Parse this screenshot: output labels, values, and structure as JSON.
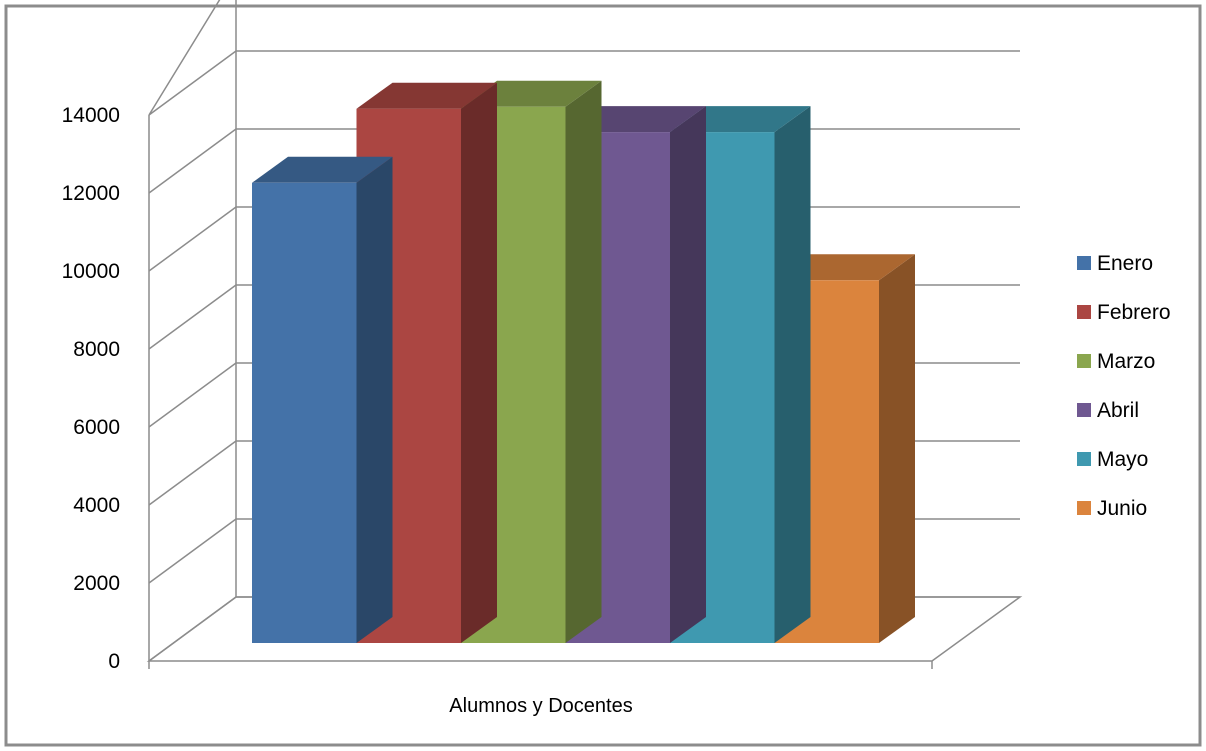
{
  "chart_data": {
    "type": "bar",
    "view": "3d-clustered-column",
    "categories": [
      "Alumnos y Docentes"
    ],
    "series": [
      {
        "name": "Enero",
        "values": [
          11800
        ],
        "color": "#4472a8"
      },
      {
        "name": "Febrero",
        "values": [
          13700
        ],
        "color": "#ab4642"
      },
      {
        "name": "Marzo",
        "values": [
          13750
        ],
        "color": "#8aa64e"
      },
      {
        "name": "Abril",
        "values": [
          13100
        ],
        "color": "#6f5891"
      },
      {
        "name": "Mayo",
        "values": [
          13100
        ],
        "color": "#3f99b0"
      },
      {
        "name": "Junio",
        "values": [
          9300
        ],
        "color": "#db843d"
      }
    ],
    "xlabel": "Alumnos y Docentes",
    "ylabel": "",
    "ylim": [
      0,
      14000
    ],
    "yticks": [
      "0",
      "2000",
      "4000",
      "6000",
      "8000",
      "10000",
      "12000",
      "14000"
    ],
    "grid": true,
    "legend": "right"
  }
}
